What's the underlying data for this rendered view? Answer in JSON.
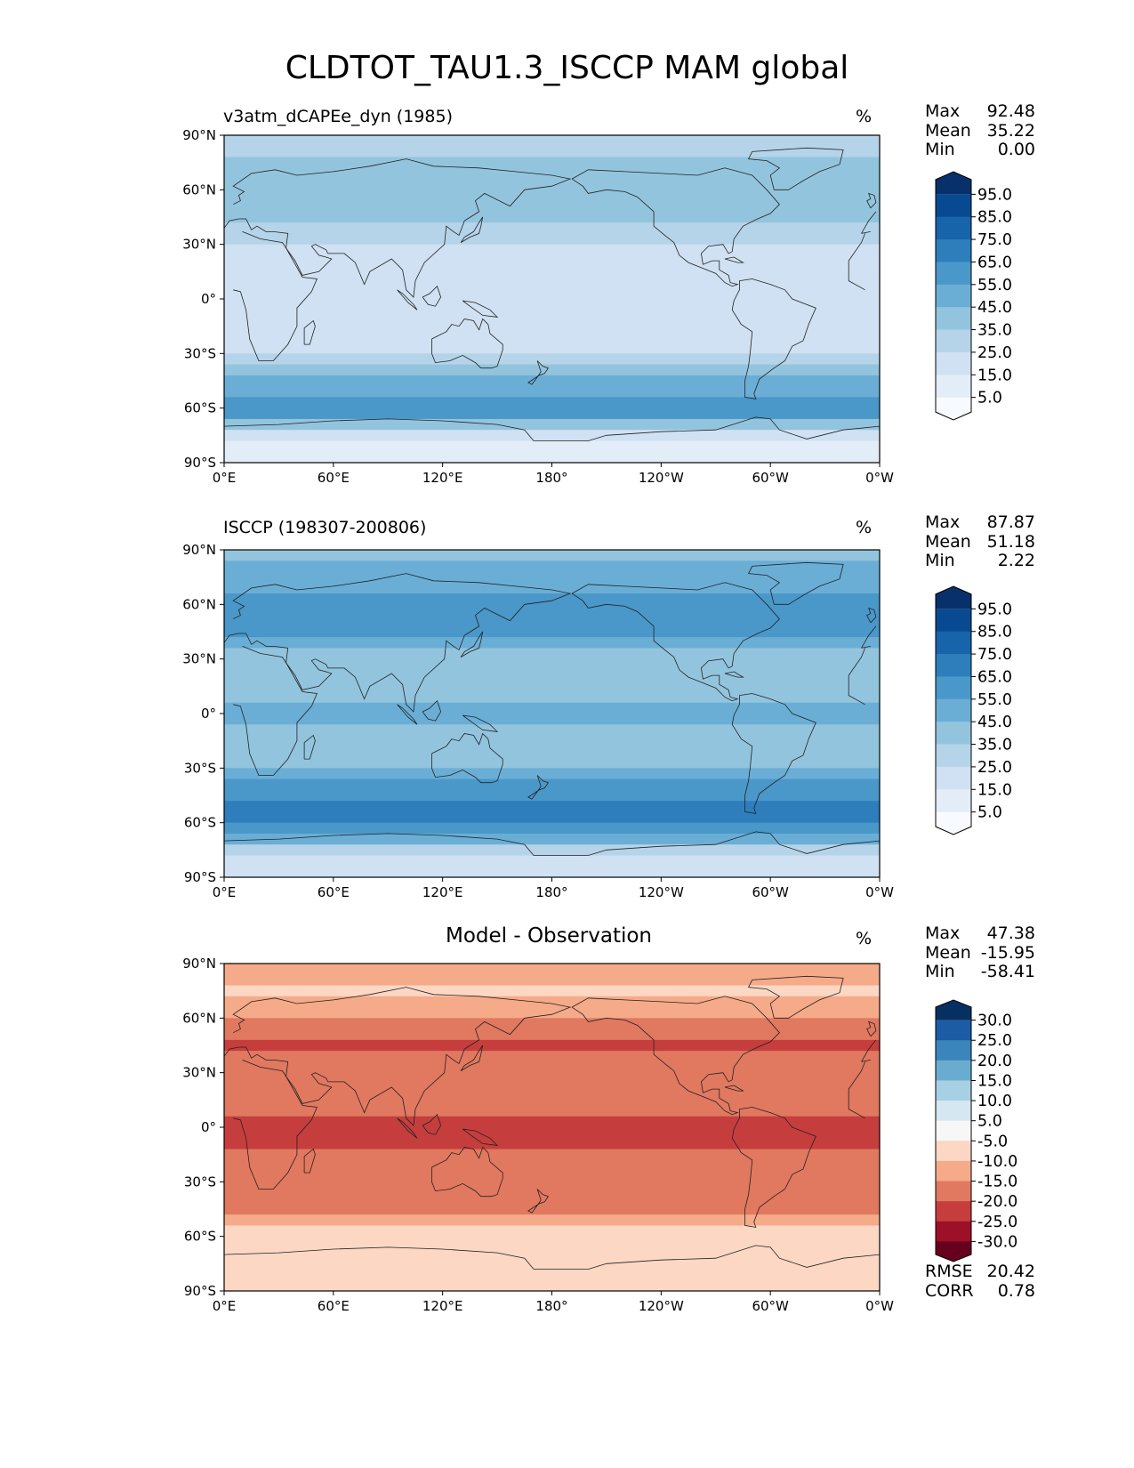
{
  "figure_title": "CLDTOT_TAU1.3_ISCCP MAM global",
  "colors": {
    "blues": [
      "#f7fbff",
      "#e2edf8",
      "#cfe1f2",
      "#b5d4e9",
      "#93c4de",
      "#6aaed6",
      "#4a97c9",
      "#2e7ebc",
      "#1764ab",
      "#084a91",
      "#08306b"
    ],
    "diff": [
      "#67001f",
      "#9c1127",
      "#c53e3d",
      "#e17860",
      "#f5aa89",
      "#fbd7c4",
      "#f7f7f7",
      "#d5e7f1",
      "#a7d0e4",
      "#6aacd0",
      "#3a86bc",
      "#1c5ca4",
      "#053061"
    ],
    "coast": "#222222"
  },
  "panels": [
    {
      "id": "test",
      "title": "v3atm_dCAPEe_dyn (1985)",
      "units": "%",
      "stats": [
        {
          "label": "Max",
          "value": "92.48"
        },
        {
          "label": "Mean",
          "value": "35.22"
        },
        {
          "label": "Min",
          "value": "0.00"
        }
      ]
    },
    {
      "id": "ref",
      "title": "ISCCP (198307-200806)",
      "units": "%",
      "stats": [
        {
          "label": "Max",
          "value": "87.87"
        },
        {
          "label": "Mean",
          "value": "51.18"
        },
        {
          "label": "Min",
          "value": "2.22"
        }
      ]
    },
    {
      "id": "diff",
      "title": "Model - Observation",
      "units": "%",
      "stats": [
        {
          "label": "Max",
          "value": "47.38"
        },
        {
          "label": "Mean",
          "value": "-15.95"
        },
        {
          "label": "Min",
          "value": "-58.41"
        }
      ],
      "extra_stats": [
        {
          "label": "RMSE",
          "value": "20.42"
        },
        {
          "label": "CORR",
          "value": "0.78"
        }
      ]
    }
  ],
  "chart_data": [
    {
      "type": "heatmap",
      "title": "v3atm_dCAPEe_dyn (1985)",
      "units": "%",
      "xlim": [
        0,
        360
      ],
      "ylim": [
        -90,
        90
      ],
      "xticks": [
        "0°E",
        "60°E",
        "120°E",
        "180°",
        "120°W",
        "60°W",
        "0°W"
      ],
      "yticks": [
        "90°N",
        "60°N",
        "30°N",
        "0°",
        "30°S",
        "60°S",
        "90°S"
      ],
      "colorbar_levels": [
        0,
        10,
        20,
        30,
        40,
        50,
        60,
        70,
        80,
        90,
        100
      ],
      "colorbar_ticks": [
        "95.0",
        "85.0",
        "75.0",
        "65.0",
        "55.0",
        "45.0",
        "35.0",
        "25.0",
        "15.0",
        "5.0"
      ],
      "zonal_profile": {
        "lat": [
          90,
          75,
          60,
          45,
          30,
          15,
          0,
          -15,
          -30,
          -45,
          -60,
          -75,
          -90
        ],
        "value": [
          30,
          45,
          50,
          40,
          28,
          25,
          30,
          25,
          30,
          50,
          70,
          25,
          10
        ]
      },
      "max": 92.48,
      "mean": 35.22,
      "min": 0.0
    },
    {
      "type": "heatmap",
      "title": "ISCCP (198307-200806)",
      "units": "%",
      "xlim": [
        0,
        360
      ],
      "ylim": [
        -90,
        90
      ],
      "xticks": [
        "0°E",
        "60°E",
        "120°E",
        "180°",
        "120°W",
        "60°W",
        "0°W"
      ],
      "yticks": [
        "90°N",
        "60°N",
        "30°N",
        "0°",
        "30°S",
        "60°S",
        "90°S"
      ],
      "colorbar_levels": [
        0,
        10,
        20,
        30,
        40,
        50,
        60,
        70,
        80,
        90,
        100
      ],
      "colorbar_ticks": [
        "95.0",
        "85.0",
        "75.0",
        "65.0",
        "55.0",
        "45.0",
        "35.0",
        "25.0",
        "15.0",
        "5.0"
      ],
      "zonal_profile": {
        "lat": [
          90,
          75,
          60,
          45,
          30,
          15,
          0,
          -15,
          -30,
          -45,
          -60,
          -75,
          -90
        ],
        "value": [
          45,
          55,
          65,
          62,
          45,
          42,
          52,
          45,
          48,
          68,
          75,
          35,
          20
        ]
      },
      "max": 87.87,
      "mean": 51.18,
      "min": 2.22
    },
    {
      "type": "heatmap",
      "title": "Model - Observation",
      "units": "%",
      "xlim": [
        0,
        360
      ],
      "ylim": [
        -90,
        90
      ],
      "xticks": [
        "0°E",
        "60°E",
        "120°E",
        "180°",
        "120°W",
        "60°W",
        "0°W"
      ],
      "yticks": [
        "90°N",
        "60°N",
        "30°N",
        "0°",
        "30°S",
        "60°S",
        "90°S"
      ],
      "colorbar_levels": [
        -35,
        -30,
        -25,
        -20,
        -15,
        -10,
        -5,
        5,
        10,
        15,
        20,
        25,
        30,
        35
      ],
      "colorbar_ticks": [
        "30.0",
        "25.0",
        "20.0",
        "15.0",
        "10.0",
        "5.0",
        "-5.0",
        "-10.0",
        "-15.0",
        "-20.0",
        "-25.0",
        "-30.0"
      ],
      "zonal_profile": {
        "lat": [
          90,
          75,
          60,
          45,
          30,
          15,
          0,
          -15,
          -30,
          -45,
          -60,
          -75,
          -90
        ],
        "value": [
          -15,
          -10,
          -15,
          -22,
          -17,
          -17,
          -22,
          -20,
          -18,
          -18,
          -5,
          -10,
          -10
        ]
      },
      "max": 47.38,
      "mean": -15.95,
      "min": -58.41,
      "rmse": 20.42,
      "corr": 0.78
    }
  ]
}
